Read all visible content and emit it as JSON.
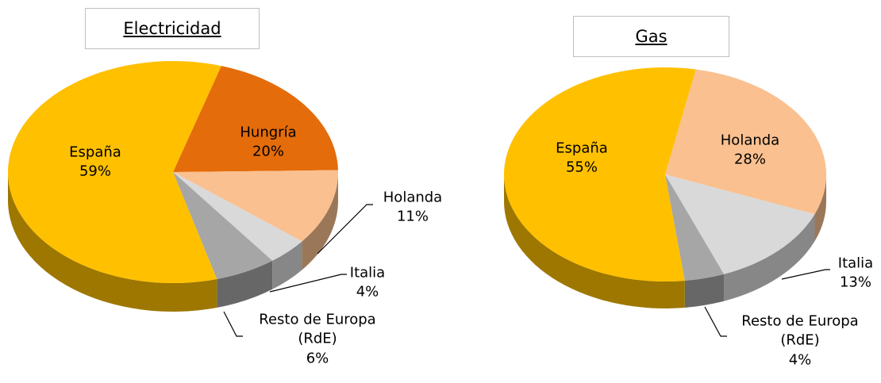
{
  "chart_data": [
    {
      "type": "pie",
      "title": "Electricidad",
      "categories": [
        "Hungría",
        "Holanda",
        "Italia",
        "Resto de Europa (RdE)",
        "España"
      ],
      "values": [
        20,
        11,
        4,
        6,
        59
      ],
      "value_labels": [
        "20%",
        "11%",
        "4%",
        "6%",
        "59%"
      ],
      "colors": [
        "#e46c0a",
        "#fac090",
        "#d9d9d9",
        "#a6a6a6",
        "#ffc000"
      ]
    },
    {
      "type": "pie",
      "title": "Gas",
      "categories": [
        "Holanda",
        "Italia",
        "Resto de Europa (RdE)",
        "España"
      ],
      "values": [
        28,
        13,
        4,
        55
      ],
      "value_labels": [
        "28%",
        "13%",
        "4%",
        "55%"
      ],
      "colors": [
        "#fac090",
        "#d9d9d9",
        "#a6a6a6",
        "#ffc000"
      ]
    }
  ]
}
